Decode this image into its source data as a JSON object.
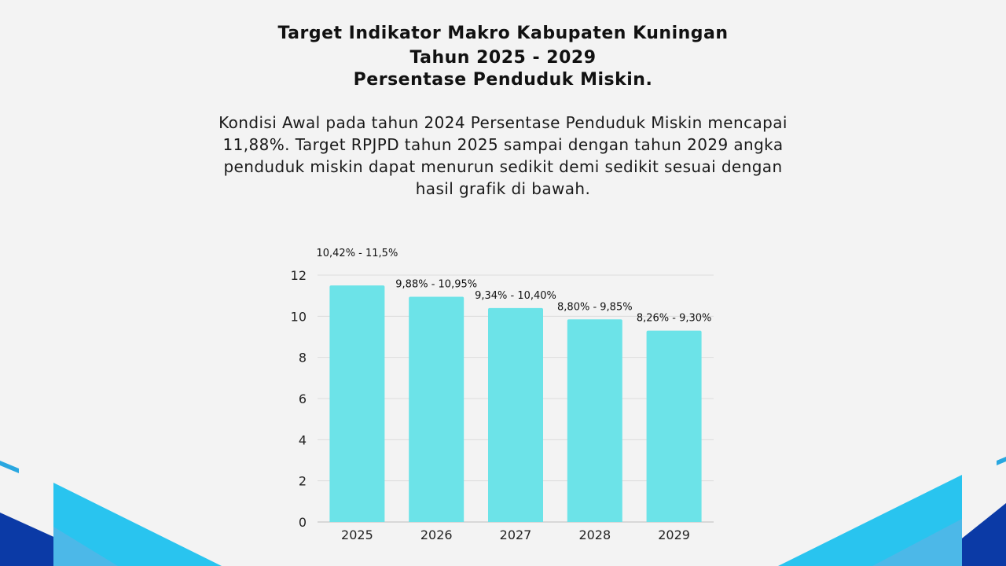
{
  "header": {
    "title_line1": "Target Indikator Makro Kabupaten Kuningan",
    "title_line2": "Tahun 2025 - 2029",
    "title_line3": "Persentase Penduduk Miskin."
  },
  "description": "Kondisi Awal pada tahun 2024 Persentase Penduduk Miskin mencapai 11,88%. Target RPJPD tahun 2025 sampai dengan tahun 2029 angka penduduk miskin dapat menurun sedikit demi sedikit sesuai dengan hasil grafik di bawah.",
  "colors": {
    "bar": "#6ce3e8",
    "grid": "#dcdcdc",
    "background": "#f3f3f3",
    "accent_dark_blue": "#0b3aa6",
    "accent_light_blue": "#29c4ef"
  },
  "chart_data": {
    "type": "bar",
    "categories": [
      "2025",
      "2026",
      "2027",
      "2028",
      "2029"
    ],
    "values": [
      11.5,
      10.95,
      10.4,
      9.85,
      9.3
    ],
    "data_labels": [
      "10,42% - 11,5%",
      "9,88% - 10,95%",
      "9,34% - 10,40%",
      "8,80% - 9,85%",
      "8,26% - 9,30%"
    ],
    "title": "",
    "xlabel": "",
    "ylabel": "",
    "ylim": [
      0,
      12
    ],
    "yticks": [
      0,
      2,
      4,
      6,
      8,
      10,
      12
    ],
    "grid": true,
    "legend": "none"
  }
}
